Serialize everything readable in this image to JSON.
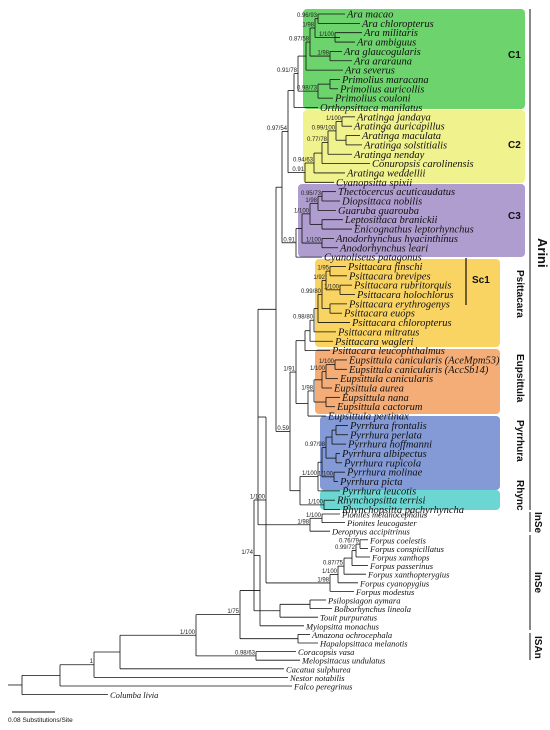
{
  "colors": {
    "C1": "#2fc12f",
    "C2": "#e9ec5c",
    "C3": "#8b74b9",
    "Psittacara": "#f7c21f",
    "Eupsittula": "#f08a3c",
    "Pyrrhura": "#4e6fc4",
    "Rhynchopsitta": "#2ec6bf"
  },
  "groups": {
    "C1": "C1",
    "C2": "C2",
    "C3": "C3",
    "Sc1": "Sc1",
    "Psittacara": "Psittacara",
    "Eupsittula": "Eupsittula",
    "Pyrrhura": "Pyrrhura",
    "Rhyncho": "Rhync",
    "Arini": "Arini",
    "InSe1": "InSe",
    "InSe2": "InSe",
    "ISAn": "ISAn"
  },
  "scale_label": "0.08 Substitutions/Site",
  "taxa": [
    "Ara macao",
    "Ara chloropterus",
    "Ara militaris",
    "Ara ambiguus",
    "Ara glaucogularis",
    "Ara ararauna",
    "Ara severus",
    "Primolius maracana",
    "Primolius auricollis",
    "Primolius couloni",
    "Orthopsittaca manilatus",
    "Aratinga jandaya",
    "Aratinga auricapillus",
    "Aratinga maculata",
    "Aratinga solstitialis",
    "Aratinga nenday",
    "Conuropsis carolinensis",
    "Aratinga weddellii",
    "Cyanopsitta spixii",
    "Thectocercus acuticaudatus",
    "Diopsittaca nobilis",
    "Guaruba guarouba",
    "Leptosittaca branickii",
    "Enicognathus leptorhynchus",
    "Anodorhynchus hyacinthinus",
    "Anodorhynchus leari",
    "Cyanoliseus patagonus",
    "Psittacara finschi",
    "Psittacara brevipes",
    "Psittacara rubritorquis",
    "Psittacara holochlorus",
    "Psittacara erythrogenys",
    "Psittacara euops",
    "Psittacara chloropterus",
    "Psittacara mitratus",
    "Psittacara wagleri",
    "Psittacara leucophthalmus",
    "Eupsittula canicularis (AceMpm53)",
    "Eupsittula canicularis (AccSb14)",
    "Eupsittula canicularis",
    "Eupsittula aurea",
    "Eupsittula nana",
    "Eupsittula cactorum",
    "Eupsittula pertinax",
    "Pyrrhura frontalis",
    "Pyrrhura perlata",
    "Pyrrhura hoffmanni",
    "Pyrrhura albipectus",
    "Pyrrhura rupicola",
    "Pyrrhura molinae",
    "Pyrrhura picta",
    "Pyrrhura leucotis",
    "Rhynchopsitta terrisi",
    "Rhynchopsitta pachyrhyncha"
  ],
  "outgroup_taxa": [
    "Pionites melanocephalus",
    "Pionites leucogaster",
    "Deroptyus accipitrinus",
    "Forpus coelestis",
    "Forpus conspicillatus",
    "Forpus xanthops",
    "Forpus passerinus",
    "Forpus xanthopterygius",
    "Forpus cyanopygius",
    "Forpus modestus",
    "Psilopsiagon aymara",
    "Bolborhynchus lineola",
    "Touit purpuratus",
    "Myiopsitta monachus",
    "Amazona ochrocephala",
    "Hapalopsittaca melanotis",
    "Coracopsis vasa",
    "Melopsittacus undulatus",
    "Cacatua sulphurea",
    "Nestor notabilis",
    "Falco peregrinus",
    "Columba livia"
  ],
  "supports": [
    "0.96/93",
    "1/98",
    "1/100",
    "0.87/58",
    "1/98",
    "0.91/78",
    "0.98/73",
    "1/100",
    "0.99/100",
    "0.77/78",
    "0.94/63",
    "0.97/54",
    "0.91",
    "0.95/73",
    "1/98",
    "1/100",
    "1/100",
    "0.91",
    "1/95",
    "1/92",
    "1/100",
    "0.99/80",
    "0.98/80",
    "1/100",
    "1/100",
    "1/98",
    "0.59",
    "1/91",
    "0.97/98",
    "1/100",
    "1/100",
    "1/100",
    "1/100",
    "1/98",
    "0.76/79",
    "0.99/72",
    "0.87/75",
    "1/100",
    "1/98",
    "1/100",
    "1/74",
    "1/75",
    "1/100",
    "0.98/63",
    "1"
  ]
}
